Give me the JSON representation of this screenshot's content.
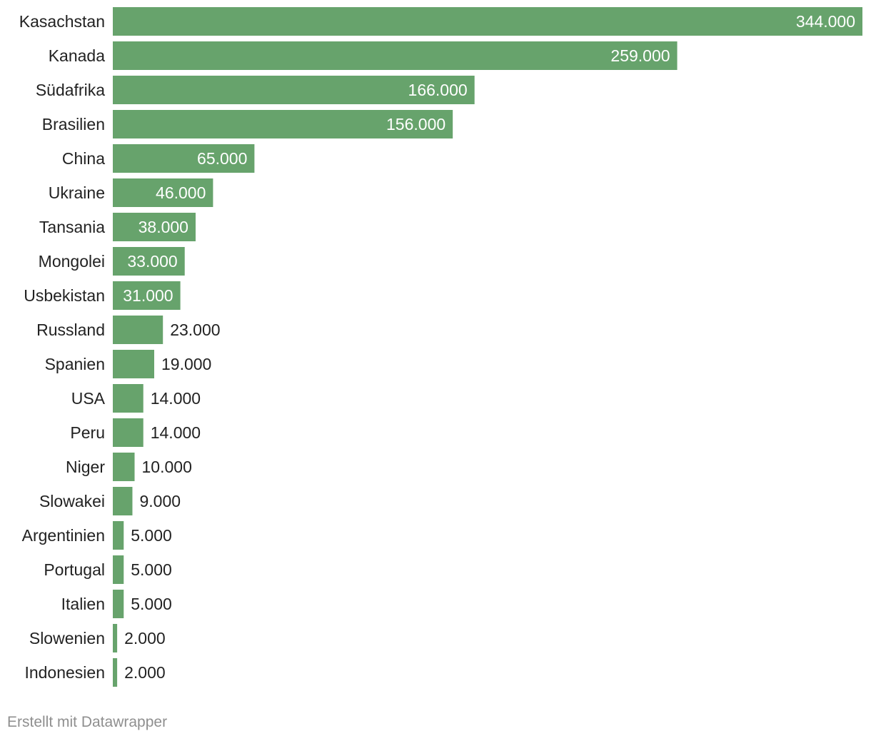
{
  "chart_data": {
    "type": "bar",
    "orientation": "horizontal",
    "categories": [
      "Kasachstan",
      "Kanada",
      "Südafrika",
      "Brasilien",
      "China",
      "Ukraine",
      "Tansania",
      "Mongolei",
      "Usbekistan",
      "Russland",
      "Spanien",
      "USA",
      "Peru",
      "Niger",
      "Slowakei",
      "Argentinien",
      "Portugal",
      "Italien",
      "Slowenien",
      "Indonesien"
    ],
    "values": [
      344000,
      259000,
      166000,
      156000,
      65000,
      46000,
      38000,
      33000,
      31000,
      23000,
      19000,
      14000,
      14000,
      10000,
      9000,
      5000,
      5000,
      5000,
      2000,
      2000
    ],
    "value_labels": [
      "344.000",
      "259.000",
      "166.000",
      "156.000",
      "65.000",
      "46.000",
      "38.000",
      "33.000",
      "31.000",
      "23.000",
      "19.000",
      "14.000",
      "14.000",
      "10.000",
      "9.000",
      "5.000",
      "5.000",
      "5.000",
      "2.000",
      "2.000"
    ],
    "xlim": [
      0,
      344000
    ],
    "grid": false,
    "bar_color": "#67a36c",
    "label_inside_color": "#ffffff",
    "label_outside_color": "#222222"
  },
  "footer": {
    "credit": "Erstellt mit Datawrapper"
  }
}
